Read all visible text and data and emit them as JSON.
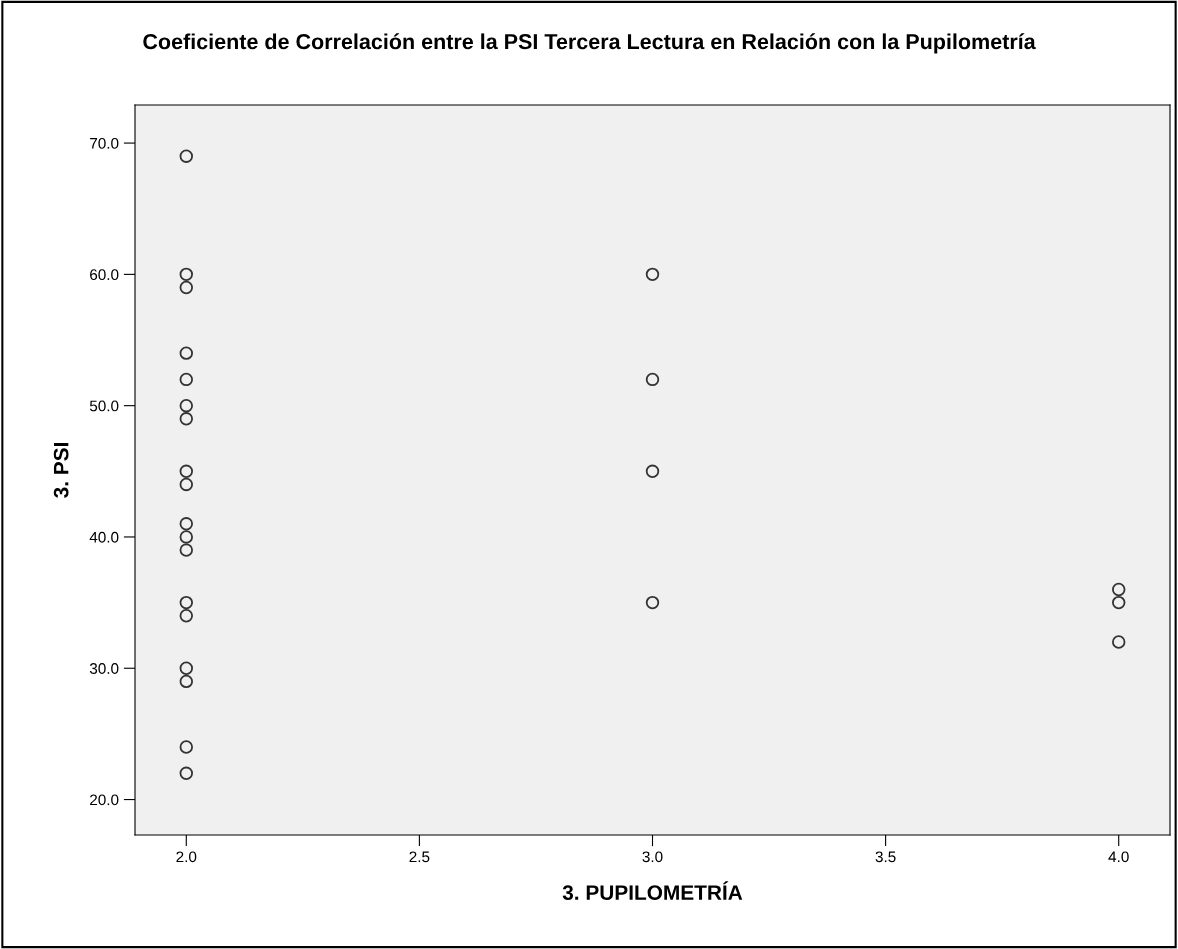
{
  "chart_data": {
    "type": "scatter",
    "title": "Coeficiente de Correlación entre la PSI Tercera Lectura en Relación con la Pupilometría",
    "xlabel": "3. PUPILOMETRÍA",
    "ylabel": "3. PSI",
    "x": [
      2,
      2,
      2,
      2,
      2,
      2,
      2,
      2,
      2,
      2,
      2,
      2,
      2,
      2,
      2,
      2,
      2,
      2,
      3,
      3,
      3,
      3,
      4,
      4,
      4
    ],
    "values": [
      69,
      60,
      59,
      54,
      52,
      50,
      49,
      45,
      44,
      41,
      40,
      39,
      35,
      34,
      30,
      29,
      24,
      22,
      60,
      52,
      45,
      35,
      36,
      35,
      32
    ],
    "color": "#333333",
    "marker": "circle",
    "grid": false,
    "xlim": [
      1.89,
      4.11
    ],
    "xticks": [
      {
        "value": 2,
        "label": "2.0"
      },
      {
        "value": 2.5,
        "label": "2.5"
      },
      {
        "value": 3,
        "label": "3.0"
      },
      {
        "value": 3.5,
        "label": "3.5"
      },
      {
        "value": 4,
        "label": "4.0"
      }
    ],
    "ylim": [
      17.3,
      72.9
    ],
    "yticks": [
      {
        "value": 20,
        "label": "20.0"
      },
      {
        "value": 30,
        "label": "30.0"
      },
      {
        "value": 40,
        "label": "40.0"
      },
      {
        "value": 50,
        "label": "50.0"
      },
      {
        "value": 60,
        "label": "60.0"
      },
      {
        "value": 70,
        "label": "70.0"
      }
    ]
  }
}
